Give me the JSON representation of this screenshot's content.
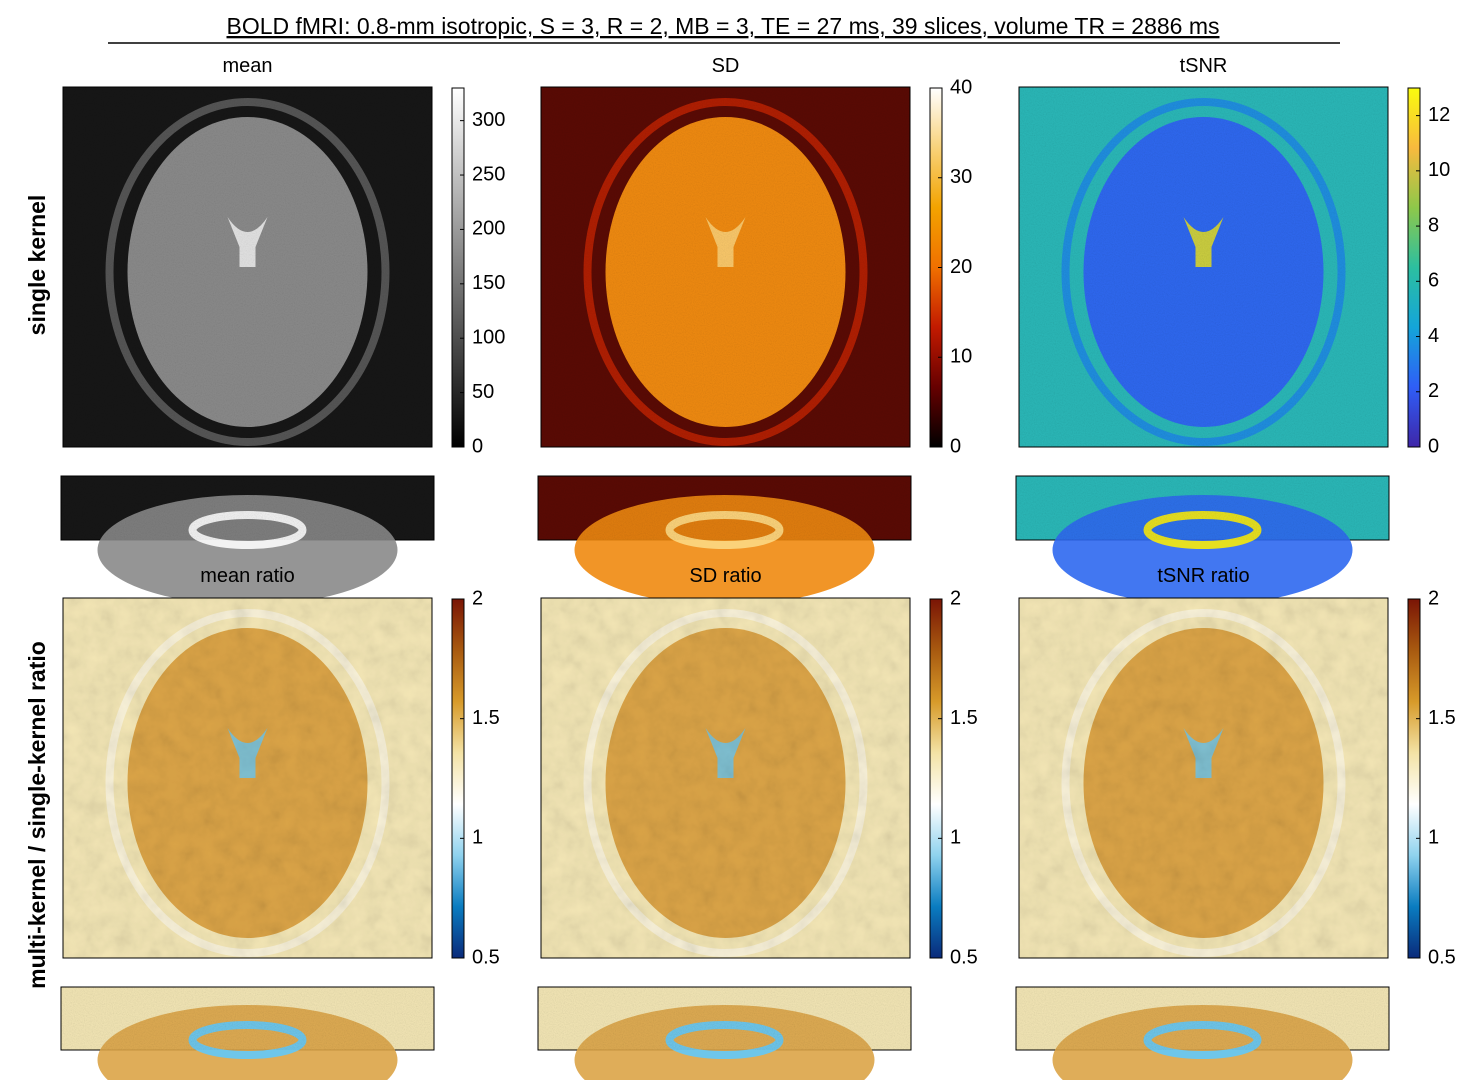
{
  "title": "BOLD fMRI: 0.8-mm isotropic,  S = 3,  R = 2,  MB = 3,  TE = 27 ms,  39 slices,  volume TR = 2886 ms",
  "row_labels": [
    "single kernel",
    "multi-kernel / single-kernel ratio"
  ],
  "panels": [
    {
      "title": "mean",
      "colormap": "gray",
      "ylim": [
        0,
        330
      ],
      "yticks": [
        0,
        50,
        100,
        150,
        200,
        250,
        300
      ]
    },
    {
      "title": "SD",
      "colormap": "hot",
      "ylim": [
        0,
        40
      ],
      "yticks": [
        0,
        10,
        20,
        30,
        40
      ]
    },
    {
      "title": "tSNR",
      "colormap": "parula",
      "ylim": [
        0,
        13
      ],
      "yticks": [
        0,
        2,
        4,
        6,
        8,
        10,
        12
      ]
    },
    {
      "title": "mean ratio",
      "colormap": "diverging",
      "ylim": [
        0.5,
        2
      ],
      "yticks": [
        0.5,
        1,
        1.5,
        2
      ]
    },
    {
      "title": "SD ratio",
      "colormap": "diverging",
      "ylim": [
        0.5,
        2
      ],
      "yticks": [
        0.5,
        1,
        1.5,
        2
      ]
    },
    {
      "title": "tSNR ratio",
      "colormap": "diverging",
      "ylim": [
        0.5,
        2
      ],
      "yticks": [
        0.5,
        1,
        1.5,
        2
      ]
    }
  ]
}
